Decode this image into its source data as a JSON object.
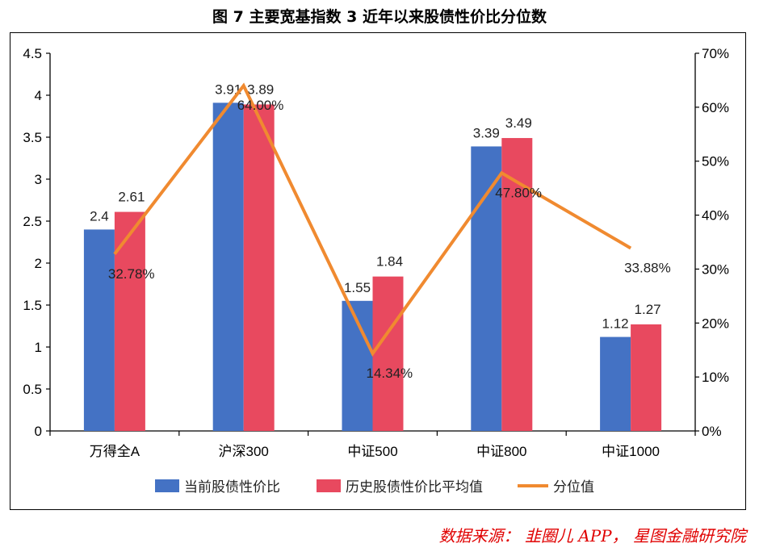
{
  "title": "图 7 主要宽基指数 3 近年以来股债性价比分位数",
  "source": "数据来源： 韭圈儿 APP， 星图金融研究院",
  "colors": {
    "bar_current": "#4472c4",
    "bar_hist": "#e8495f",
    "line": "#f08a30",
    "axis": "#000000"
  },
  "chart_data": {
    "type": "bar",
    "categories": [
      "万得全A",
      "沪深300",
      "中证500",
      "中证800",
      "中证1000"
    ],
    "series": [
      {
        "name": "当前股债性价比",
        "type": "bar",
        "axis": "left",
        "values": [
          2.4,
          3.91,
          1.55,
          3.39,
          1.12
        ],
        "labels": [
          "2.4",
          "3.91",
          "1.55",
          "3.39",
          "1.12"
        ]
      },
      {
        "name": "历史股债性价比平均值",
        "type": "bar",
        "axis": "left",
        "values": [
          2.61,
          3.89,
          1.84,
          3.49,
          1.27
        ],
        "labels": [
          "2.61",
          "3.89",
          "1.84",
          "3.49",
          "1.27"
        ]
      },
      {
        "name": "分位值",
        "type": "line",
        "axis": "right",
        "values": [
          32.78,
          64.0,
          14.34,
          47.8,
          33.88
        ],
        "labels": [
          "32.78%",
          "64.00%",
          "14.34%",
          "47.80%",
          "33.88%"
        ]
      }
    ],
    "y_left": {
      "min": 0,
      "max": 4.5,
      "ticks": [
        "0",
        "0.5",
        "1",
        "1.5",
        "2",
        "2.5",
        "3",
        "3.5",
        "4",
        "4.5"
      ]
    },
    "y_right": {
      "min": 0,
      "max": 70,
      "ticks": [
        "0%",
        "10%",
        "20%",
        "30%",
        "40%",
        "50%",
        "60%",
        "70%"
      ]
    },
    "legend_position": "bottom",
    "grid": false
  }
}
